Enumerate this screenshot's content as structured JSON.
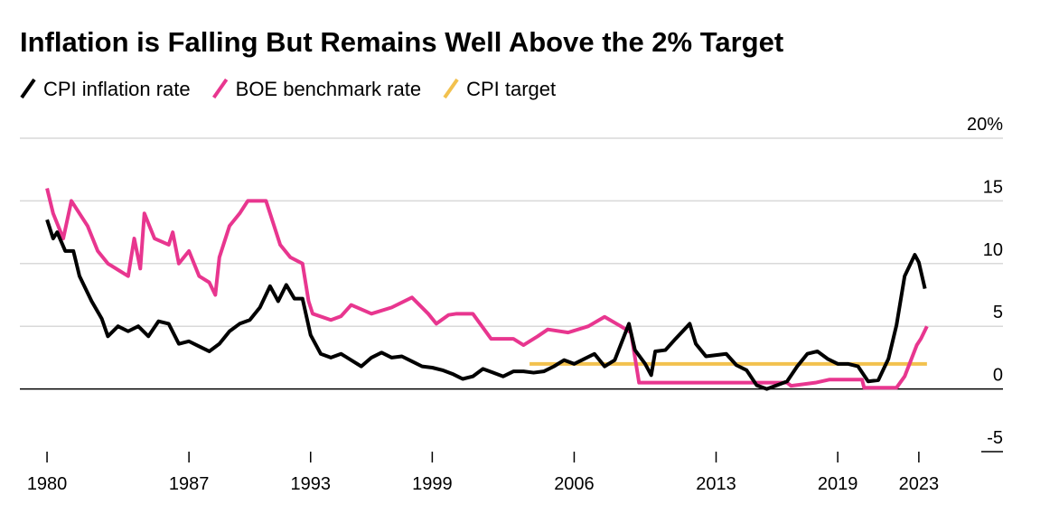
{
  "chart_data": {
    "type": "line",
    "title": "Inflation is Falling But Remains Well Above the 2% Target",
    "xlim": [
      1978.66,
      2027.15
    ],
    "xticks": [
      1980,
      1987,
      1993,
      1999,
      2006,
      2013,
      2019,
      2023
    ],
    "ylim": [
      -5,
      20
    ],
    "yticks": [
      -5,
      0,
      5,
      10,
      15,
      {
        "value": 20,
        "label": "20%"
      }
    ],
    "grid": true,
    "legend": "top-left",
    "series": [
      {
        "name": "CPI inflation rate",
        "color": "#000000",
        "x": [
          1980.0,
          1980.3,
          1980.5,
          1980.9,
          1981.3,
          1981.6,
          1982.2,
          1982.7,
          1983.0,
          1983.5,
          1984.0,
          1984.5,
          1985.0,
          1985.5,
          1986.0,
          1986.5,
          1987.0,
          1987.5,
          1988.0,
          1988.5,
          1989.0,
          1989.5,
          1990.0,
          1990.5,
          1991.0,
          1991.4,
          1991.8,
          1992.2,
          1992.6,
          1993.0,
          1993.5,
          1994.0,
          1994.5,
          1995.0,
          1995.5,
          1996.0,
          1996.5,
          1997.0,
          1997.5,
          1998.0,
          1998.5,
          1999.0,
          1999.5,
          2000.0,
          2000.5,
          2001.0,
          2001.5,
          2002.0,
          2002.5,
          2003.0,
          2003.5,
          2004.0,
          2004.5,
          2005.0,
          2005.5,
          2006.0,
          2006.5,
          2007.0,
          2007.5,
          2008.0,
          2008.7,
          2009.0,
          2009.5,
          2009.8,
          2010.0,
          2010.5,
          2011.0,
          2011.7,
          2012.0,
          2012.5,
          2013.0,
          2013.5,
          2014.0,
          2014.5,
          2015.0,
          2015.5,
          2016.0,
          2016.5,
          2017.0,
          2017.5,
          2018.0,
          2018.5,
          2019.0,
          2019.5,
          2020.0,
          2020.5,
          2021.0,
          2021.5,
          2021.9,
          2022.3,
          2022.8,
          2023.0,
          2023.3
        ],
        "values": [
          13.5,
          12.0,
          12.5,
          11.0,
          11.0,
          9.0,
          7.0,
          5.6,
          4.2,
          5.0,
          4.6,
          5.0,
          4.2,
          5.4,
          5.2,
          3.6,
          3.8,
          3.4,
          3.0,
          3.6,
          4.6,
          5.2,
          5.5,
          6.5,
          8.2,
          7.0,
          8.3,
          7.2,
          7.2,
          4.3,
          2.8,
          2.5,
          2.8,
          2.3,
          1.8,
          2.5,
          2.9,
          2.5,
          2.6,
          2.2,
          1.8,
          1.7,
          1.5,
          1.2,
          0.8,
          1.0,
          1.6,
          1.3,
          1.0,
          1.4,
          1.4,
          1.3,
          1.4,
          1.8,
          2.3,
          2.0,
          2.4,
          2.8,
          1.8,
          2.3,
          5.2,
          3.1,
          2.0,
          1.1,
          3.0,
          3.1,
          4.0,
          5.2,
          3.6,
          2.6,
          2.7,
          2.8,
          1.9,
          1.5,
          0.3,
          0.0,
          0.3,
          0.6,
          1.8,
          2.8,
          3.0,
          2.4,
          2.0,
          2.0,
          1.8,
          0.6,
          0.7,
          2.4,
          5.1,
          9.0,
          10.7,
          10.1,
          8.0
        ]
      },
      {
        "name": "BOE benchmark rate",
        "color": "#e8368f",
        "x": [
          1980.0,
          1980.3,
          1980.8,
          1981.2,
          1982.0,
          1982.5,
          1983.0,
          1983.5,
          1984.0,
          1984.3,
          1984.6,
          1984.8,
          1985.3,
          1986.0,
          1986.2,
          1986.5,
          1987.0,
          1987.5,
          1988.0,
          1988.3,
          1988.5,
          1989.0,
          1989.5,
          1989.9,
          1990.8,
          1991.0,
          1991.5,
          1992.0,
          1992.6,
          1992.9,
          1993.1,
          1994.0,
          1994.5,
          1995.0,
          1996.0,
          1997.0,
          1998.0,
          1998.8,
          1999.2,
          1999.8,
          2000.2,
          2001.0,
          2001.9,
          2003.0,
          2003.5,
          2004.2,
          2004.7,
          2005.7,
          2006.7,
          2007.5,
          2008.3,
          2008.8,
          2009.2,
          2016.5,
          2016.7,
          2017.9,
          2018.6,
          2020.2,
          2020.3,
          2021.9,
          2022.3,
          2022.6,
          2022.9,
          2023.1,
          2023.4
        ],
        "values": [
          16,
          14,
          12,
          15,
          13,
          11,
          10,
          9.5,
          9,
          12,
          9.6,
          14,
          12,
          11.5,
          12.5,
          10,
          11,
          9,
          8.5,
          7.5,
          10.5,
          13,
          14,
          15,
          15,
          14,
          11.5,
          10.5,
          10,
          7,
          6,
          5.5,
          5.8,
          6.7,
          6.0,
          6.5,
          7.3,
          6.0,
          5.2,
          5.9,
          6,
          6.0,
          4.0,
          4.0,
          3.5,
          4.2,
          4.75,
          4.5,
          5.0,
          5.75,
          5.0,
          4.5,
          0.5,
          0.5,
          0.25,
          0.5,
          0.75,
          0.75,
          0.1,
          0.1,
          1.0,
          2.25,
          3.5,
          4.0,
          5.0
        ]
      },
      {
        "name": "CPI target",
        "color": "#f2c14e",
        "x": [
          2003.8,
          2023.4
        ],
        "values": [
          2,
          2
        ]
      }
    ]
  }
}
